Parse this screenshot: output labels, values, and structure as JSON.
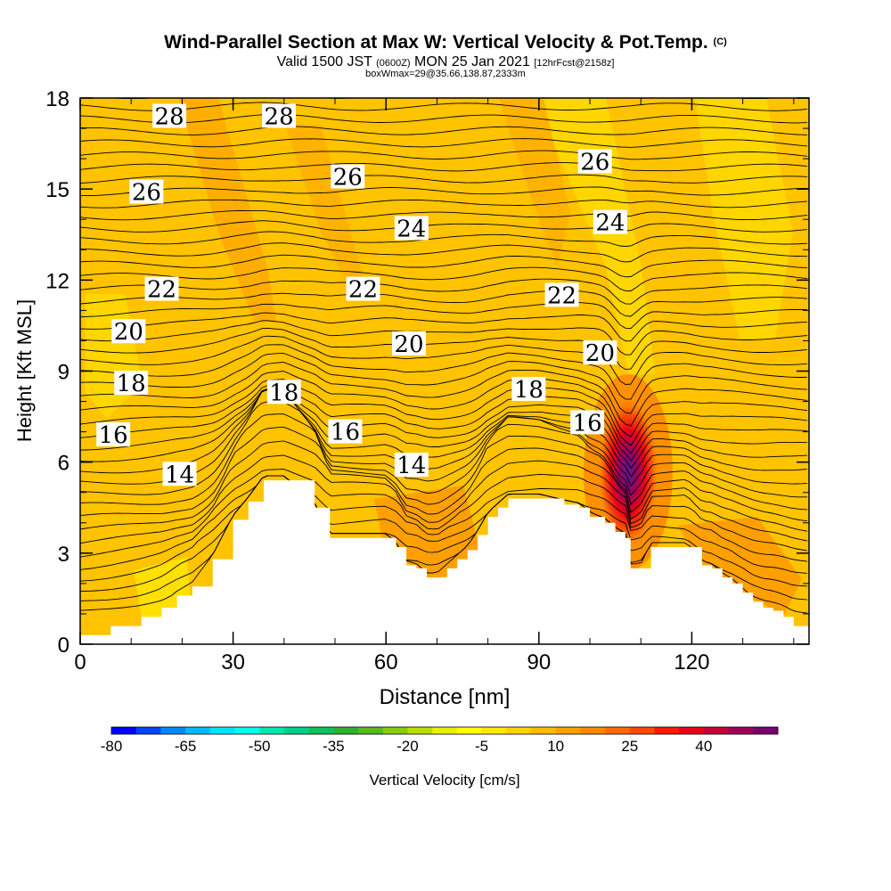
{
  "header": {
    "title": "Wind-Parallel Section at Max W: Vertical Velocity & Pot.Temp.",
    "copyright": "(C)",
    "subtitle_pre": "Valid 1500 JST",
    "subtitle_utc": "(0600Z)",
    "subtitle_date": "MON 25 Jan 2021",
    "subtitle_fcst": "[12hrFcst@2158z]",
    "subtitle2": "boxWmax=29@35.66,138.87,2333m"
  },
  "chart_data": {
    "type": "contour",
    "title": "Wind-Parallel Section at Max W: Vertical Velocity & Pot.Temp.",
    "xlabel": "Distance [nm]",
    "ylabel": "Height [Kft MSL]",
    "xlim": [
      0,
      143
    ],
    "ylim": [
      0,
      18
    ],
    "x_ticks": [
      0,
      30,
      60,
      90,
      120
    ],
    "y_ticks": [
      0,
      3,
      6,
      9,
      12,
      15,
      18
    ],
    "colorbar": {
      "label": "Vertical Velocity [cm/s]",
      "ticks": [
        -80,
        -65,
        -50,
        -35,
        -20,
        -5,
        10,
        25,
        40
      ],
      "min": -80,
      "step": 5,
      "colors": [
        "#0000ff",
        "#0044ff",
        "#0088ff",
        "#00bbff",
        "#00e5ff",
        "#00ffee",
        "#00e8b0",
        "#00d28a",
        "#10c060",
        "#30b030",
        "#55bb20",
        "#88cc10",
        "#bbdd00",
        "#e8f000",
        "#ffff00",
        "#ffe800",
        "#ffd200",
        "#ffbb00",
        "#ffa000",
        "#ff8800",
        "#ff6a00",
        "#ff4800",
        "#ff1a00",
        "#e8001a",
        "#c8003a",
        "#a0005a",
        "#780070"
      ]
    },
    "terrain_profile": {
      "x_nm": [
        0,
        6,
        12,
        16,
        19,
        22,
        26,
        30,
        33,
        36,
        40,
        46,
        49,
        52,
        55,
        60,
        62,
        64,
        66,
        68,
        70,
        72,
        74,
        76,
        78,
        80,
        82,
        84,
        86,
        90,
        95,
        98,
        100,
        103,
        105,
        107,
        108,
        110,
        112,
        115,
        119,
        122,
        124,
        126,
        128,
        130,
        132,
        134,
        136,
        138,
        140,
        143
      ],
      "height_kft": [
        0.3,
        0.6,
        0.9,
        1.2,
        1.6,
        1.9,
        2.8,
        4.1,
        4.7,
        5.4,
        5.4,
        4.5,
        3.5,
        3.5,
        3.5,
        3.5,
        3.2,
        2.6,
        2.5,
        2.2,
        2.2,
        2.5,
        2.8,
        3.1,
        3.6,
        4.2,
        4.5,
        4.8,
        4.8,
        4.8,
        4.6,
        4.5,
        4.2,
        4.0,
        3.7,
        3.5,
        2.5,
        2.5,
        3.2,
        3.2,
        3.2,
        2.6,
        2.5,
        2.2,
        2.0,
        1.7,
        1.4,
        1.2,
        1.1,
        0.9,
        0.6,
        0.4
      ]
    },
    "theta_contour_labels": [
      {
        "text": "28",
        "x": 17.5,
        "y": 17.4
      },
      {
        "text": "28",
        "x": 39,
        "y": 17.4
      },
      {
        "text": "26",
        "x": 13,
        "y": 14.9
      },
      {
        "text": "26",
        "x": 52.5,
        "y": 15.4
      },
      {
        "text": "26",
        "x": 101,
        "y": 15.9
      },
      {
        "text": "24",
        "x": 65,
        "y": 13.7
      },
      {
        "text": "24",
        "x": 104,
        "y": 13.9
      },
      {
        "text": "22",
        "x": 16,
        "y": 11.7
      },
      {
        "text": "22",
        "x": 55.5,
        "y": 11.7
      },
      {
        "text": "22",
        "x": 94.5,
        "y": 11.5
      },
      {
        "text": "20",
        "x": 9.5,
        "y": 10.3
      },
      {
        "text": "20",
        "x": 64.5,
        "y": 9.9
      },
      {
        "text": "20",
        "x": 102,
        "y": 9.6
      },
      {
        "text": "18",
        "x": 10,
        "y": 8.6
      },
      {
        "text": "18",
        "x": 40,
        "y": 8.3
      },
      {
        "text": "18",
        "x": 88,
        "y": 8.4
      },
      {
        "text": "16",
        "x": 6.5,
        "y": 6.9
      },
      {
        "text": "16",
        "x": 52,
        "y": 7.0
      },
      {
        "text": "16",
        "x": 99.5,
        "y": 7.3
      },
      {
        "text": "14",
        "x": 19.5,
        "y": 5.6
      },
      {
        "text": "14",
        "x": 65,
        "y": 5.9
      }
    ],
    "max_vertical_velocity_cm_s": 29,
    "max_w_location": {
      "x_nm": 107,
      "height_kft": 5.7
    }
  }
}
